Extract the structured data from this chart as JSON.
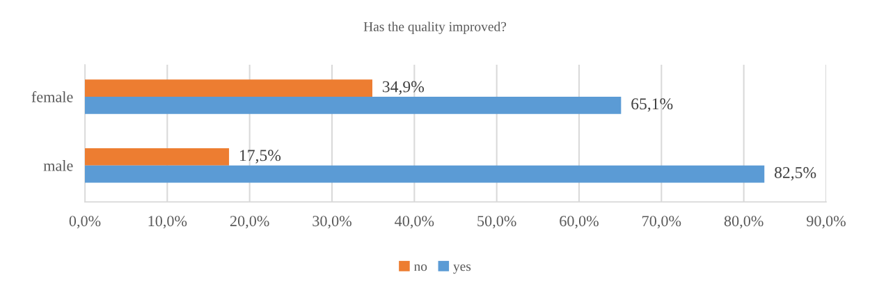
{
  "chart_data": {
    "type": "bar",
    "orientation": "horizontal",
    "title": "Has the quality improved?",
    "categories": [
      "female",
      "male"
    ],
    "series": [
      {
        "name": "no",
        "color": "#ed7d31",
        "values": [
          34.9,
          17.5
        ],
        "value_labels": [
          "34,9%",
          "17,5%"
        ]
      },
      {
        "name": "yes",
        "color": "#5b9bd5",
        "values": [
          65.1,
          82.5
        ],
        "value_labels": [
          "65,1%",
          "82,5%"
        ]
      }
    ],
    "xlim": [
      0,
      90
    ],
    "xticks": [
      {
        "value": 0,
        "label": "0,0%"
      },
      {
        "value": 10,
        "label": "10,0%"
      },
      {
        "value": 20,
        "label": "20,0%"
      },
      {
        "value": 30,
        "label": "30,0%"
      },
      {
        "value": 40,
        "label": "40,0%"
      },
      {
        "value": 50,
        "label": "50,0%"
      },
      {
        "value": 60,
        "label": "60,0%"
      },
      {
        "value": 70,
        "label": "70,0%"
      },
      {
        "value": 80,
        "label": "80,0%"
      },
      {
        "value": 90,
        "label": "90,0%"
      }
    ],
    "grid": "x",
    "legend": "bottom"
  }
}
